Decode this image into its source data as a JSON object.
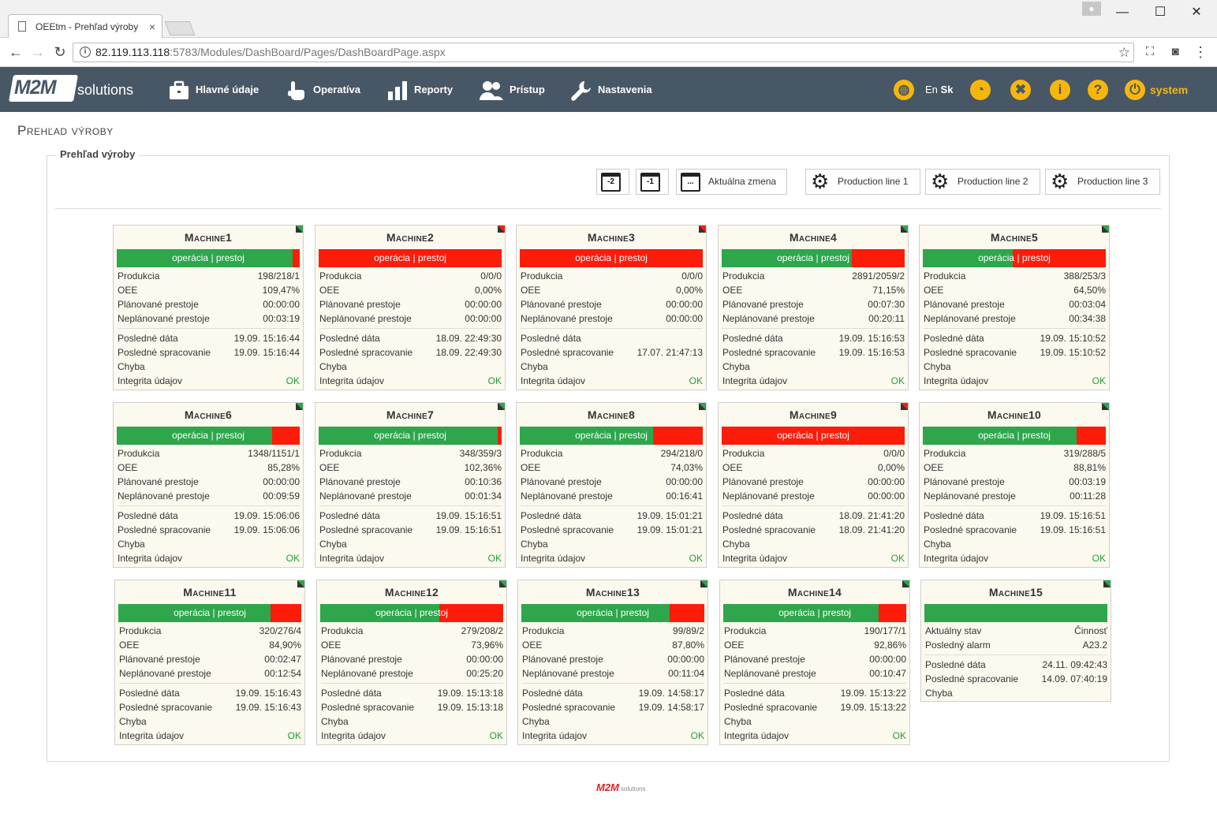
{
  "browser": {
    "tab_title": "OEEtm - Prehľad výroby",
    "tab_close": "×",
    "url_host": "82.119.113.118",
    "url_rest": ":5783/Modules/DashBoard/Pages/DashBoardPage.aspx",
    "minimize": "—",
    "maximize": "☐",
    "close": "✕"
  },
  "navbar": {
    "logo": "M2M",
    "logo_suffix": "solutions",
    "items": [
      {
        "label": "Hlavné údaje",
        "icon": "briefcase-icon"
      },
      {
        "label": "Operatíva",
        "icon": "hand-pointer-icon"
      },
      {
        "label": "Reporty",
        "icon": "bar-chart-icon"
      },
      {
        "label": "Prístup",
        "icon": "users-icon"
      },
      {
        "label": "Nastavenia",
        "icon": "wrench-icon"
      }
    ],
    "lang_en": "En",
    "lang_sk": "Sk",
    "info": "i",
    "help": "?",
    "user": "system",
    "accent": "#f6b60c"
  },
  "page": {
    "title": "Prehľad výroby",
    "legend": "Prehľad výroby",
    "cal_minus2": "-2",
    "cal_minus1": "-1",
    "cal_current": "...",
    "current_shift": "Aktuálna zmena",
    "lines": [
      "Production line 1",
      "Production line 2",
      "Production line 3"
    ]
  },
  "labels": {
    "status": "operácia | prestoj",
    "produkcia": "Produkcia",
    "oee": "OEE",
    "planned": "Plánované prestoje",
    "unplanned": "Neplánované prestoje",
    "last_data": "Posledné dáta",
    "last_processing": "Posledné spracovanie",
    "error": "Chyba",
    "integrity": "Integrita údajov",
    "current_state": "Aktuálny stav",
    "last_alarm": "Posledný alarm"
  },
  "machines": [
    {
      "name": "Machine1",
      "op_pct": 96,
      "corner": "green",
      "prod": "198/218/1",
      "oee": "109,47%",
      "planned": "00:00:00",
      "unplanned": "00:03:19",
      "last_data": "19.09. 15:16:44",
      "last_proc": "19.09. 15:16:44",
      "integrity": "OK"
    },
    {
      "name": "Machine2",
      "op_pct": 0,
      "corner": "red",
      "prod": "0/0/0",
      "oee": "0,00%",
      "planned": "00:00:00",
      "unplanned": "00:00:00",
      "last_data": "18.09. 22:49:30",
      "last_proc": "18.09. 22:49:30",
      "integrity": "OK"
    },
    {
      "name": "Machine3",
      "op_pct": 0,
      "corner": "red",
      "prod": "0/0/0",
      "oee": "0,00%",
      "planned": "00:00:00",
      "unplanned": "00:00:00",
      "last_data": "",
      "last_proc": "17.07. 21:47:13",
      "integrity": "OK"
    },
    {
      "name": "Machine4",
      "op_pct": 71,
      "corner": "green",
      "prod": "2891/2059/2",
      "oee": "71,15%",
      "planned": "00:07:30",
      "unplanned": "00:20:11",
      "last_data": "19.09. 15:16:53",
      "last_proc": "19.09. 15:16:53",
      "integrity": "OK"
    },
    {
      "name": "Machine5",
      "op_pct": 49,
      "corner": "green",
      "prod": "388/253/3",
      "oee": "64,50%",
      "planned": "00:03:04",
      "unplanned": "00:34:38",
      "last_data": "19.09. 15:10:52",
      "last_proc": "19.09. 15:10:52",
      "integrity": "OK"
    },
    {
      "name": "Machine6",
      "op_pct": 85,
      "corner": "green",
      "prod": "1348/1151/1",
      "oee": "85,28%",
      "planned": "00:00:00",
      "unplanned": "00:09:59",
      "last_data": "19.09. 15:06:06",
      "last_proc": "19.09. 15:06:06",
      "integrity": "OK"
    },
    {
      "name": "Machine7",
      "op_pct": 98,
      "corner": "green",
      "prod": "348/359/3",
      "oee": "102,36%",
      "planned": "00:10:36",
      "unplanned": "00:01:34",
      "last_data": "19.09. 15:16:51",
      "last_proc": "19.09. 15:16:51",
      "integrity": "OK"
    },
    {
      "name": "Machine8",
      "op_pct": 73,
      "corner": "green",
      "prod": "294/218/0",
      "oee": "74,03%",
      "planned": "00:00:00",
      "unplanned": "00:16:41",
      "last_data": "19.09. 15:01:21",
      "last_proc": "19.09. 15:01:21",
      "integrity": "OK"
    },
    {
      "name": "Machine9",
      "op_pct": 0,
      "corner": "red",
      "prod": "0/0/0",
      "oee": "0,00%",
      "planned": "00:00:00",
      "unplanned": "00:00:00",
      "last_data": "18.09. 21:41:20",
      "last_proc": "18.09. 21:41:20",
      "integrity": "OK"
    },
    {
      "name": "Machine10",
      "op_pct": 84,
      "corner": "green",
      "prod": "319/288/5",
      "oee": "88,81%",
      "planned": "00:03:19",
      "unplanned": "00:11:28",
      "last_data": "19.09. 15:16:51",
      "last_proc": "19.09. 15:16:51",
      "integrity": "OK"
    },
    {
      "name": "Machine11",
      "op_pct": 83,
      "corner": "green",
      "prod": "320/276/4",
      "oee": "84,90%",
      "planned": "00:02:47",
      "unplanned": "00:12:54",
      "last_data": "19.09. 15:16:43",
      "last_proc": "19.09. 15:16:43",
      "integrity": "OK"
    },
    {
      "name": "Machine12",
      "op_pct": 65,
      "corner": "green",
      "prod": "279/208/2",
      "oee": "73,96%",
      "planned": "00:00:00",
      "unplanned": "00:25:20",
      "last_data": "19.09. 15:13:18",
      "last_proc": "19.09. 15:13:18",
      "integrity": "OK"
    },
    {
      "name": "Machine13",
      "op_pct": 81,
      "corner": "green",
      "prod": "99/89/2",
      "oee": "87,80%",
      "planned": "00:00:00",
      "unplanned": "00:11:04",
      "last_data": "19.09. 14:58:17",
      "last_proc": "19.09. 14:58:17",
      "integrity": "OK"
    },
    {
      "name": "Machine14",
      "op_pct": 85,
      "corner": "green",
      "prod": "190/177/1",
      "oee": "92,86%",
      "planned": "00:00:00",
      "unplanned": "00:10:47",
      "last_data": "19.09. 15:13:22",
      "last_proc": "19.09. 15:13:22",
      "integrity": "OK"
    }
  ],
  "machine15": {
    "name": "Machine15",
    "op_pct": 100,
    "corner": "green",
    "current_state": "Činnosť",
    "last_alarm": "A23.2",
    "last_data": "24.11. 09:42:43",
    "last_proc": "14.09. 07:40:19"
  },
  "colors": {
    "green": "#2da64c",
    "red": "#fc1c0a",
    "ok": "#20a030"
  },
  "footer": {
    "logo": "M2M",
    "suffix": "solutions"
  }
}
